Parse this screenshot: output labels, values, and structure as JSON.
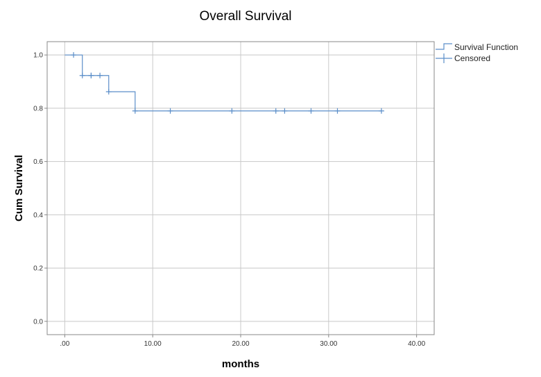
{
  "chart_data": {
    "type": "line",
    "title": "Overall Survival",
    "xlabel": "months",
    "ylabel": "Cum Survival",
    "xlim": [
      -2,
      42
    ],
    "ylim": [
      -0.05,
      1.05
    ],
    "x_ticks": [
      0,
      10,
      20,
      30,
      40
    ],
    "x_tick_labels": [
      ".00",
      "10.00",
      "20.00",
      "30.00",
      "40.00"
    ],
    "y_ticks": [
      0.0,
      0.2,
      0.4,
      0.6,
      0.8,
      1.0
    ],
    "y_tick_labels": [
      "0.0",
      "0.2",
      "0.4",
      "0.6",
      "0.8",
      "1.0"
    ],
    "grid": true,
    "legend_position": "top-right",
    "series": [
      {
        "name": "Survival Function",
        "kind": "step",
        "color": "#5b8ec9",
        "x": [
          0,
          2,
          5,
          8,
          36
        ],
        "y": [
          1.0,
          0.923,
          0.862,
          0.79,
          0.79
        ]
      },
      {
        "name": "Censored",
        "kind": "marker",
        "color": "#5b8ec9",
        "x": [
          1,
          2,
          3,
          3,
          4,
          5,
          8,
          12,
          19,
          24,
          25,
          28,
          31,
          36
        ],
        "y": [
          1.0,
          0.923,
          0.923,
          0.923,
          0.923,
          0.862,
          0.79,
          0.79,
          0.79,
          0.79,
          0.79,
          0.79,
          0.79,
          0.79
        ]
      }
    ]
  }
}
